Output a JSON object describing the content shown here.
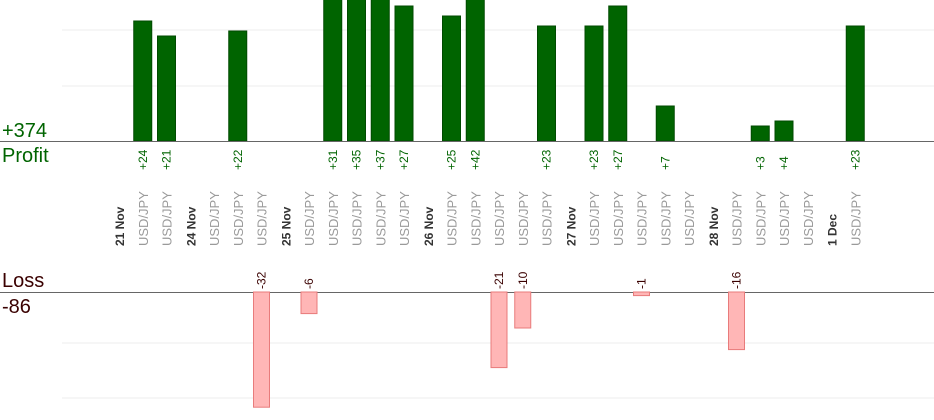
{
  "profit_panel": {
    "total": "+374",
    "label": "Profit",
    "color": "#006400",
    "color_dark": "#004a00"
  },
  "loss_panel": {
    "total": "-86",
    "label": "Loss",
    "color": "#ffb6b6",
    "color_border": "#e87b7b"
  },
  "chart_data": {
    "type": "bar",
    "categories": [
      "21 Nov",
      "USD/JPY",
      "USD/JPY",
      "24 Nov",
      "USD/JPY",
      "USD/JPY",
      "USD/JPY",
      "25 Nov",
      "USD/JPY",
      "USD/JPY",
      "USD/JPY",
      "USD/JPY",
      "USD/JPY",
      "26 Nov",
      "USD/JPY",
      "USD/JPY",
      "USD/JPY",
      "USD/JPY",
      "USD/JPY",
      "27 Nov",
      "USD/JPY",
      "USD/JPY",
      "USD/JPY",
      "USD/JPY",
      "USD/JPY",
      "28 Nov",
      "USD/JPY",
      "USD/JPY",
      "USD/JPY",
      "USD/JPY",
      "1 Dec",
      "USD/JPY"
    ],
    "date_flags": [
      true,
      false,
      false,
      true,
      false,
      false,
      false,
      true,
      false,
      false,
      false,
      false,
      false,
      true,
      false,
      false,
      false,
      false,
      false,
      true,
      false,
      false,
      false,
      false,
      false,
      true,
      false,
      false,
      false,
      false,
      true,
      false
    ],
    "series": [
      {
        "values": [
          null,
          24,
          21,
          null,
          null,
          22,
          -32,
          null,
          -6,
          31,
          35,
          37,
          27,
          null,
          25,
          42,
          -21,
          -10,
          23,
          null,
          23,
          27,
          -1,
          7,
          null,
          null,
          -16,
          3,
          4,
          null,
          null,
          23
        ]
      }
    ],
    "labels": [
      "",
      "+24",
      "+21",
      "",
      "",
      "+22",
      "-32",
      "",
      "-6",
      "+31",
      "+35",
      "+37",
      "+27",
      "",
      "+25",
      "+42",
      "-21",
      "-10",
      "+23",
      "",
      "+23",
      "+27",
      "-1",
      "+7",
      "",
      "",
      "-16",
      "+3",
      "+4",
      "",
      "",
      "+23"
    ],
    "ylim_profit": [
      0,
      25
    ],
    "ylim_loss": [
      -32,
      0
    ],
    "grid": true
  }
}
